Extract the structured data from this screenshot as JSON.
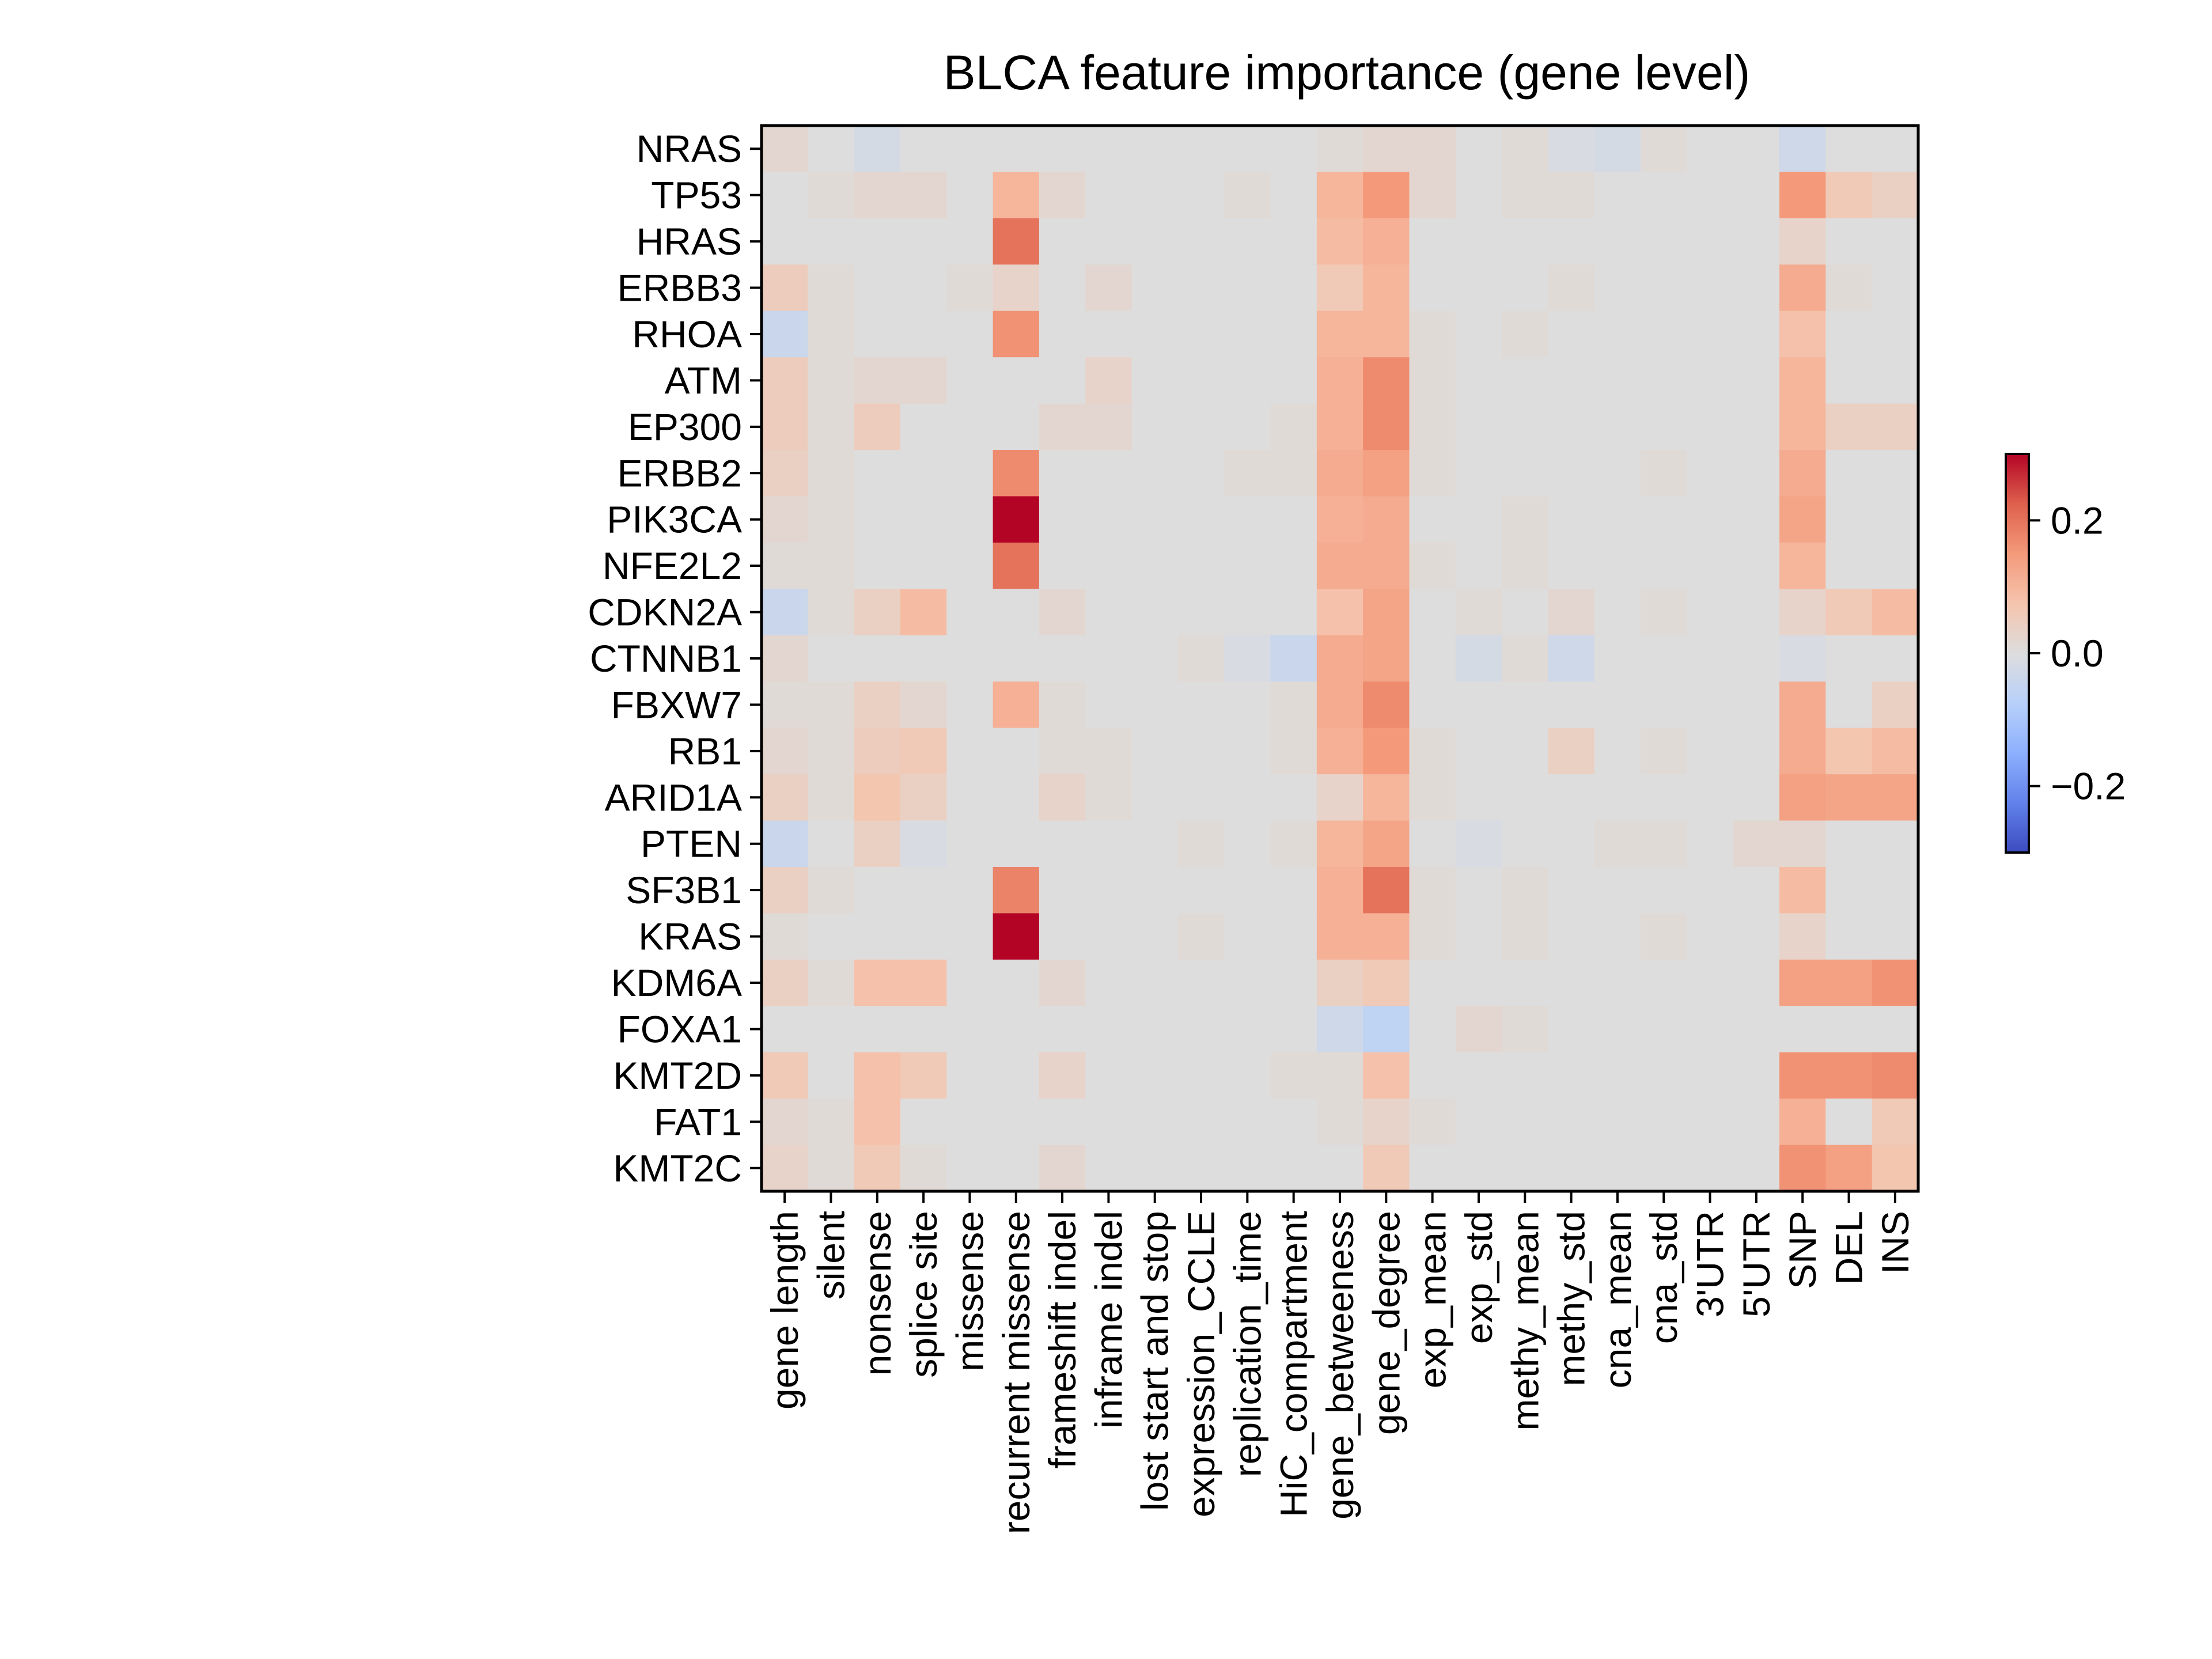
{
  "chart_data": {
    "type": "heatmap",
    "title": "BLCA feature importance (gene level)",
    "xlabel": "",
    "ylabel": "",
    "rows": [
      "NRAS",
      "TP53",
      "HRAS",
      "ERBB3",
      "RHOA",
      "ATM",
      "EP300",
      "ERBB2",
      "PIK3CA",
      "NFE2L2",
      "CDKN2A",
      "CTNNB1",
      "FBXW7",
      "RB1",
      "ARID1A",
      "PTEN",
      "SF3B1",
      "KRAS",
      "KDM6A",
      "FOXA1",
      "KMT2D",
      "FAT1",
      "KMT2C"
    ],
    "columns": [
      "gene length",
      "silent",
      "nonsense",
      "splice site",
      "missense",
      "recurrent missense",
      "frameshift indel",
      "inframe indel",
      "lost start and stop",
      "expression_CCLE",
      "replication_time",
      "HiC_compartment",
      "gene_betweeness",
      "gene_degree",
      "exp_mean",
      "exp_std",
      "methy_mean",
      "methy_std",
      "cna_mean",
      "cna_std",
      "3'UTR",
      "5'UTR",
      "SNP",
      "DEL",
      "INS"
    ],
    "values": [
      [
        0.02,
        0.0,
        -0.02,
        0.0,
        0.0,
        0.0,
        0.0,
        0.0,
        0.0,
        0.0,
        0.0,
        0.0,
        0.01,
        0.02,
        0.02,
        0.0,
        0.01,
        -0.01,
        -0.02,
        0.01,
        0.0,
        0.0,
        -0.03,
        0.0,
        0.0
      ],
      [
        0.0,
        0.01,
        0.02,
        0.02,
        0.0,
        0.1,
        0.02,
        0.0,
        0.0,
        0.0,
        0.01,
        0.0,
        0.1,
        0.15,
        0.02,
        0.0,
        0.01,
        0.01,
        0.0,
        0.0,
        0.0,
        0.0,
        0.15,
        0.06,
        0.04
      ],
      [
        0.0,
        0.0,
        0.0,
        0.0,
        0.0,
        0.2,
        0.0,
        0.0,
        0.0,
        0.0,
        0.0,
        0.0,
        0.09,
        0.11,
        0.0,
        0.0,
        0.0,
        0.0,
        0.0,
        0.0,
        0.0,
        0.0,
        0.03,
        0.0,
        0.0
      ],
      [
        0.05,
        0.01,
        0.0,
        0.0,
        0.01,
        0.03,
        0.0,
        0.02,
        0.0,
        0.0,
        0.0,
        0.0,
        0.06,
        0.1,
        0.0,
        0.0,
        0.0,
        0.01,
        0.0,
        0.0,
        0.0,
        0.0,
        0.12,
        0.01,
        0.0
      ],
      [
        -0.04,
        0.01,
        0.0,
        0.0,
        0.0,
        0.16,
        0.0,
        0.0,
        0.0,
        0.0,
        0.0,
        0.0,
        0.1,
        0.1,
        0.01,
        0.0,
        0.01,
        0.0,
        0.0,
        0.0,
        0.0,
        0.0,
        0.08,
        0.0,
        0.0
      ],
      [
        0.05,
        0.01,
        0.02,
        0.02,
        0.0,
        0.0,
        0.0,
        0.03,
        0.0,
        0.0,
        0.0,
        0.0,
        0.11,
        0.17,
        0.01,
        0.0,
        0.0,
        0.0,
        0.0,
        0.0,
        0.0,
        0.0,
        0.1,
        0.0,
        0.0
      ],
      [
        0.05,
        0.01,
        0.05,
        0.0,
        0.0,
        0.0,
        0.02,
        0.02,
        0.0,
        0.0,
        0.0,
        0.01,
        0.11,
        0.17,
        0.01,
        0.0,
        0.0,
        0.0,
        0.0,
        0.0,
        0.0,
        0.0,
        0.1,
        0.04,
        0.04
      ],
      [
        0.04,
        0.01,
        0.0,
        0.0,
        0.0,
        0.17,
        0.0,
        0.0,
        0.0,
        0.0,
        0.01,
        0.01,
        0.12,
        0.14,
        0.01,
        0.0,
        0.0,
        0.0,
        0.0,
        0.01,
        0.0,
        0.0,
        0.12,
        0.0,
        0.0
      ],
      [
        0.02,
        0.01,
        0.0,
        0.0,
        0.0,
        0.3,
        0.0,
        0.0,
        0.0,
        0.0,
        0.0,
        0.0,
        0.11,
        0.12,
        0.0,
        0.0,
        0.01,
        0.0,
        0.0,
        0.0,
        0.0,
        0.0,
        0.13,
        0.0,
        0.0
      ],
      [
        0.01,
        0.01,
        0.0,
        0.0,
        0.0,
        0.2,
        0.0,
        0.0,
        0.0,
        0.0,
        0.0,
        0.0,
        0.12,
        0.12,
        0.01,
        0.0,
        0.01,
        0.0,
        0.0,
        0.0,
        0.0,
        0.0,
        0.1,
        0.0,
        0.0
      ],
      [
        -0.04,
        0.01,
        0.04,
        0.09,
        0.0,
        0.0,
        0.02,
        0.0,
        0.0,
        0.0,
        0.0,
        0.0,
        0.08,
        0.13,
        0.0,
        0.01,
        0.0,
        0.02,
        0.0,
        0.01,
        0.0,
        0.0,
        0.03,
        0.06,
        0.09
      ],
      [
        0.02,
        0.0,
        0.0,
        0.0,
        0.0,
        0.0,
        0.0,
        0.0,
        0.0,
        0.01,
        -0.01,
        -0.04,
        0.12,
        0.13,
        0.0,
        -0.02,
        0.01,
        -0.03,
        0.0,
        0.0,
        0.0,
        0.0,
        -0.01,
        0.0,
        0.0
      ],
      [
        0.01,
        0.01,
        0.04,
        0.02,
        0.0,
        0.11,
        0.01,
        0.0,
        0.0,
        0.0,
        0.0,
        0.01,
        0.12,
        0.17,
        0.0,
        0.0,
        0.0,
        0.0,
        0.0,
        0.0,
        0.0,
        0.0,
        0.12,
        0.0,
        0.04
      ],
      [
        0.02,
        0.01,
        0.05,
        0.06,
        0.0,
        0.0,
        0.01,
        0.01,
        0.0,
        0.0,
        0.0,
        0.01,
        0.11,
        0.15,
        0.01,
        0.0,
        0.0,
        0.04,
        0.0,
        0.01,
        0.0,
        0.0,
        0.12,
        0.07,
        0.09
      ],
      [
        0.04,
        0.01,
        0.07,
        0.04,
        0.0,
        0.0,
        0.03,
        0.01,
        0.0,
        0.0,
        0.0,
        0.0,
        0.03,
        0.1,
        0.01,
        0.0,
        0.0,
        0.0,
        0.0,
        0.0,
        0.0,
        0.0,
        0.14,
        0.13,
        0.13
      ],
      [
        -0.04,
        0.0,
        0.04,
        -0.01,
        0.0,
        0.0,
        0.0,
        0.0,
        0.0,
        0.01,
        0.0,
        0.01,
        0.1,
        0.13,
        0.0,
        -0.01,
        0.0,
        0.0,
        0.01,
        0.01,
        0.0,
        0.02,
        0.02,
        0.0,
        0.0
      ],
      [
        0.04,
        0.01,
        0.0,
        0.0,
        0.0,
        0.18,
        0.0,
        0.0,
        0.0,
        0.0,
        0.0,
        0.0,
        0.11,
        0.2,
        0.01,
        0.0,
        0.01,
        0.0,
        0.0,
        0.0,
        0.0,
        0.0,
        0.09,
        0.0,
        0.0
      ],
      [
        0.01,
        0.0,
        0.0,
        0.0,
        0.0,
        0.4,
        0.0,
        0.0,
        0.0,
        0.01,
        0.0,
        0.0,
        0.11,
        0.11,
        0.01,
        0.0,
        0.01,
        0.0,
        0.0,
        0.01,
        0.0,
        0.0,
        0.03,
        0.0,
        0.0
      ],
      [
        0.04,
        0.01,
        0.08,
        0.08,
        0.0,
        0.0,
        0.02,
        0.0,
        0.0,
        0.0,
        0.0,
        0.0,
        0.04,
        0.06,
        0.0,
        0.0,
        0.0,
        0.0,
        0.0,
        0.0,
        0.0,
        0.0,
        0.14,
        0.14,
        0.16
      ],
      [
        0.0,
        0.0,
        0.0,
        0.0,
        0.0,
        0.0,
        0.0,
        0.0,
        0.0,
        0.0,
        0.0,
        0.0,
        -0.03,
        -0.06,
        0.0,
        0.02,
        0.01,
        0.0,
        0.0,
        0.0,
        0.0,
        0.0,
        0.0,
        0.0,
        0.0
      ],
      [
        0.06,
        0.0,
        0.08,
        0.06,
        0.0,
        0.0,
        0.03,
        0.0,
        0.0,
        0.0,
        0.0,
        0.01,
        0.01,
        0.08,
        0.0,
        0.0,
        0.0,
        0.0,
        0.0,
        0.0,
        0.0,
        0.0,
        0.16,
        0.16,
        0.17
      ],
      [
        0.02,
        0.01,
        0.08,
        0.0,
        0.0,
        0.0,
        0.0,
        0.0,
        0.0,
        0.0,
        0.0,
        0.0,
        0.01,
        0.03,
        0.01,
        0.0,
        0.0,
        0.0,
        0.0,
        0.0,
        0.0,
        0.0,
        0.11,
        0.0,
        0.06
      ],
      [
        0.03,
        0.01,
        0.06,
        0.01,
        0.0,
        0.0,
        0.02,
        0.0,
        0.0,
        0.0,
        0.0,
        0.0,
        0.0,
        0.06,
        0.0,
        0.0,
        0.0,
        0.0,
        0.0,
        0.0,
        0.0,
        0.0,
        0.16,
        0.14,
        0.07
      ]
    ],
    "colorbar": {
      "vmin": -0.3,
      "vmax": 0.3,
      "ticks": [
        0.2,
        0.0,
        -0.2
      ],
      "tick_labels": [
        "0.2",
        "0.0",
        "−0.2"
      ],
      "colormap": "coolwarm"
    },
    "grid": false
  }
}
